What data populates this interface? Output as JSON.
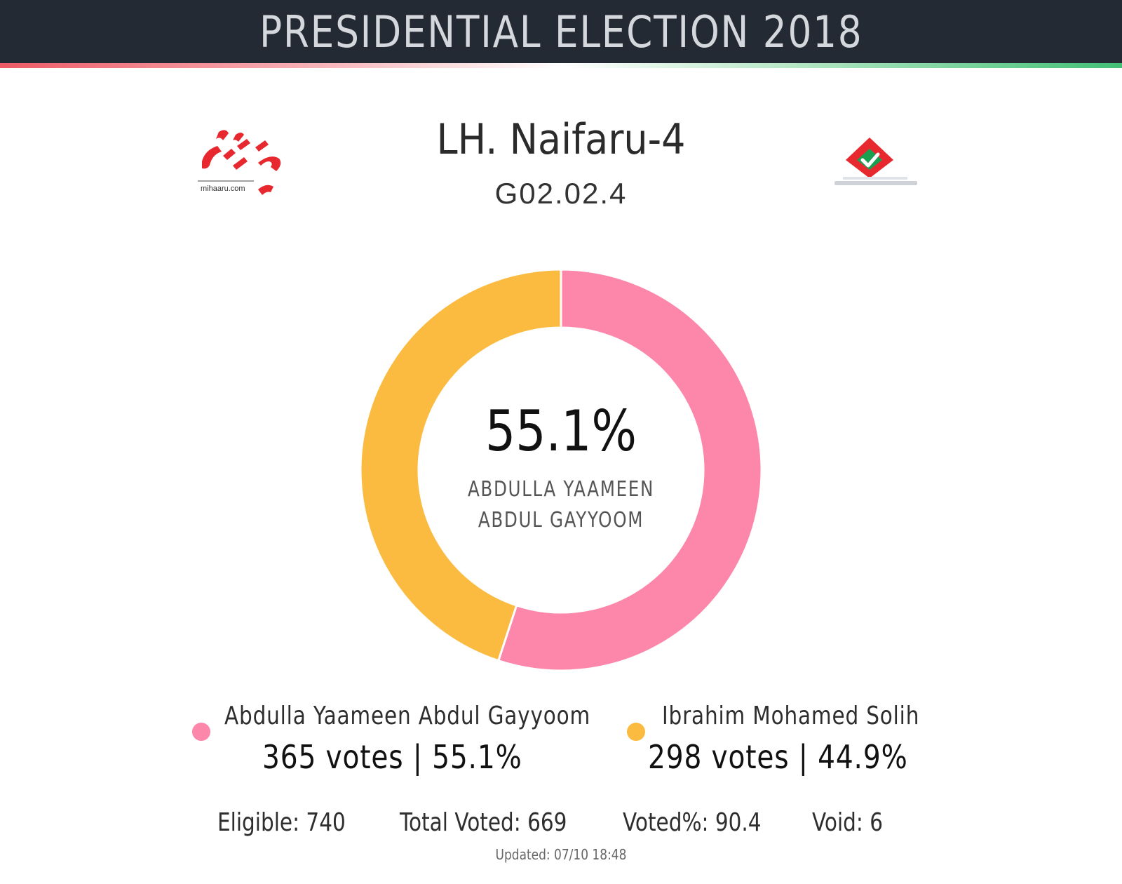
{
  "header": {
    "title": "PRESIDENTIAL ELECTION 2018"
  },
  "location": {
    "name": "LH. Naifaru-4",
    "code": "G02.02.4"
  },
  "logos": {
    "left": "mihaaru-logo",
    "left_text": "mihaaru.com",
    "right": "ballot-box-logo"
  },
  "center": {
    "percent": "55.1%",
    "name_line1": "ABDULLA YAAMEEN",
    "name_line2": "ABDUL GAYYOOM"
  },
  "legend": [
    {
      "name": "Abdulla Yaameen Abdul Gayyoom",
      "votes_text": "365 votes | 55.1%",
      "color": "#fd87ab"
    },
    {
      "name": "Ibrahim Mohamed Solih",
      "votes_text": "298 votes | 44.9%",
      "color": "#fbbb41"
    }
  ],
  "stats": {
    "eligible": "Eligible: 740",
    "total_voted": "Total Voted: 669",
    "voted_pct": "Voted%: 90.4",
    "void": "Void: 6"
  },
  "updated": "Updated: 07/10 18:48",
  "chart_data": {
    "type": "pie",
    "variant": "donut",
    "title": "",
    "categories": [
      "Abdulla Yaameen Abdul Gayyoom",
      "Ibrahim Mohamed Solih"
    ],
    "values": [
      365,
      298
    ],
    "percentages": [
      55.1,
      44.9
    ],
    "colors": [
      "#fd87ab",
      "#fbbb41"
    ],
    "start_angle": "top",
    "direction": "clockwise",
    "legend_position": "bottom"
  }
}
